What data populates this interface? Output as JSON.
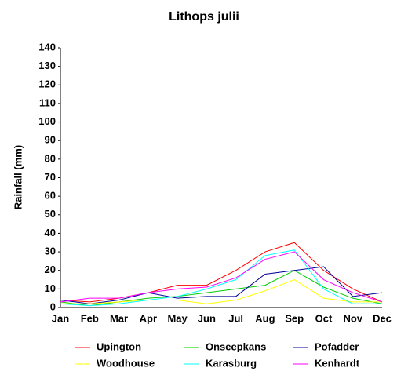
{
  "chart_data": {
    "type": "line",
    "title": "Lithops julii",
    "y_label": "Rainfall (mm)",
    "categories": [
      "Jan",
      "Feb",
      "Mar",
      "Apr",
      "May",
      "Jun",
      "Jul",
      "Aug",
      "Sep",
      "Oct",
      "Nov",
      "Dec"
    ],
    "ylim": [
      0,
      140
    ],
    "yticks": [
      0,
      10,
      20,
      30,
      40,
      50,
      60,
      70,
      80,
      90,
      100,
      110,
      120,
      130,
      140
    ],
    "grid": false,
    "legend": "bottom",
    "series": [
      {
        "name": "Upington",
        "color": "#ff0000",
        "values": [
          4,
          3,
          5,
          8,
          12,
          12,
          20,
          30,
          35,
          20,
          10,
          3
        ]
      },
      {
        "name": "Onseepkans",
        "color": "#00cc00",
        "values": [
          3,
          1,
          3,
          5,
          6,
          8,
          10,
          12,
          20,
          11,
          5,
          2
        ]
      },
      {
        "name": "Pofadder",
        "color": "#000099",
        "values": [
          4,
          2,
          4,
          8,
          5,
          6,
          6,
          18,
          20,
          22,
          6,
          8
        ]
      },
      {
        "name": "Woodhouse",
        "color": "#ffff00",
        "values": [
          2,
          2,
          3,
          4,
          4,
          2,
          4,
          9,
          15,
          5,
          3,
          3
        ]
      },
      {
        "name": "Karasburg",
        "color": "#00ffff",
        "values": [
          2,
          1,
          2,
          4,
          6,
          10,
          15,
          28,
          31,
          10,
          2,
          2
        ]
      },
      {
        "name": "Kenhardt",
        "color": "#ff00ff",
        "values": [
          3,
          5,
          5,
          8,
          10,
          11,
          16,
          26,
          30,
          15,
          8,
          3
        ]
      }
    ]
  }
}
